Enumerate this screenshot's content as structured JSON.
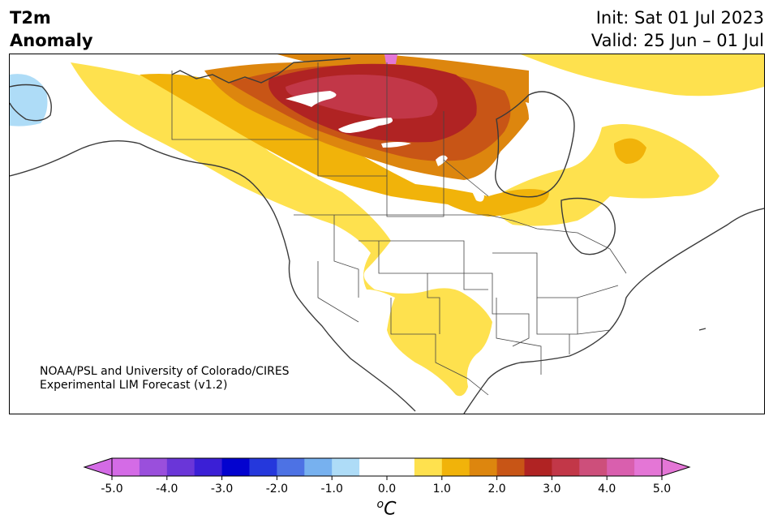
{
  "header": {
    "title_line1": "T2m",
    "title_line2": "Anomaly",
    "init": "Init: Sat 01 Jul 2023",
    "valid": "Valid: 25 Jun – 01 Jul"
  },
  "credit": {
    "line1": "NOAA/PSL and University of Colorado/CIRES",
    "line2": "Experimental LIM Forecast (v1.2)"
  },
  "colorbar": {
    "units_base": "C",
    "units_sup": "o",
    "ticks": [
      "-5.0",
      "-4.0",
      "-3.0",
      "-2.0",
      "-1.0",
      "0.0",
      "1.0",
      "2.0",
      "3.0",
      "4.0",
      "5.0"
    ],
    "colors": [
      "#d46be6",
      "#9a4fdc",
      "#6a36d8",
      "#3b1fd6",
      "#0303cf",
      "#2538dc",
      "#4d72e4",
      "#77b1ef",
      "#aedcf7",
      "#ffffff",
      "#ffffff",
      "#fee14e",
      "#f1b30a",
      "#dd860e",
      "#c85516",
      "#b02323",
      "#c23748",
      "#cd4f7b",
      "#d95fae",
      "#e476d6"
    ],
    "under_color": "#d46be6",
    "over_color": "#e476d6"
  },
  "map": {
    "region": "North America",
    "contour_colors": {
      "anom_0_5_to_1_0": "#fee14e",
      "anom_1_0_to_1_5": "#f1b30a",
      "anom_1_5_to_2_0": "#dd860e",
      "anom_2_0_to_2_5": "#c85516",
      "anom_2_5_to_3_0": "#b02323",
      "anom_3_0_to_3_5": "#c23748",
      "anom_neg_1_0_to_neg_0_5": "#aedcf7"
    }
  }
}
